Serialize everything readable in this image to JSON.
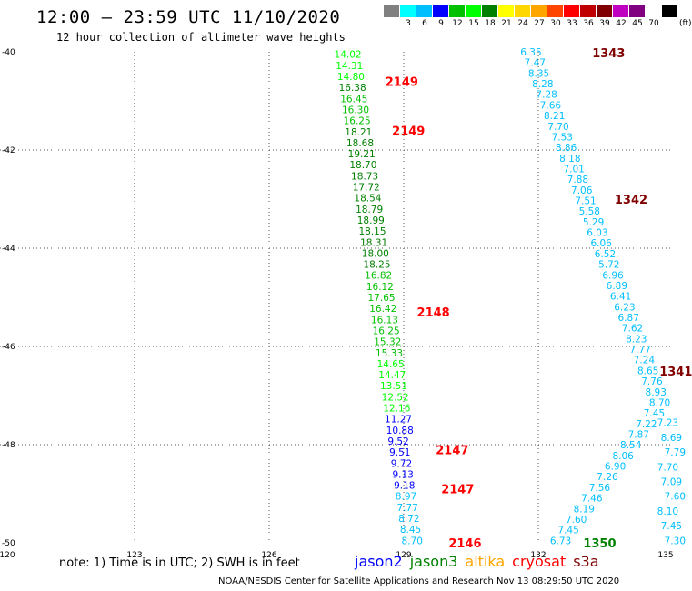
{
  "header": {
    "title": "12:00 – 23:59 UTC 11/10/2020",
    "subtitle": "12 hour collection of altimeter wave heights"
  },
  "colorbar": {
    "colors": [
      "#808080",
      "#00ffff",
      "#00bfff",
      "#0000ff",
      "#00c000",
      "#00ff00",
      "#008000",
      "#ffff00",
      "#ffd700",
      "#ffa500",
      "#ff4500",
      "#ff0000",
      "#c00000",
      "#800000",
      "#c000c0",
      "#800080",
      "#ffffff",
      "#000000"
    ],
    "labels": [
      "",
      "3",
      "6",
      "9",
      "12",
      "15",
      "18",
      "21",
      "24",
      "27",
      "30",
      "33",
      "36",
      "39",
      "42",
      "45",
      "70",
      ""
    ],
    "unit": "(ft)"
  },
  "map": {
    "lon_range": [
      120,
      135
    ],
    "lat_range": [
      -50,
      -40
    ],
    "lon_ticks": [
      "120",
      "123",
      "126",
      "129",
      "132",
      "135"
    ],
    "lat_ticks": [
      "-40",
      "-42",
      "-44",
      "-46",
      "-48",
      "-50"
    ],
    "track1": [
      {
        "v": "14.02",
        "c": "#00ff00"
      },
      {
        "v": "14.31",
        "c": "#00ff00"
      },
      {
        "v": "14.80",
        "c": "#00ff00"
      },
      {
        "v": "16.38",
        "c": "#008000"
      },
      {
        "v": "16.45",
        "c": "#00c000"
      },
      {
        "v": "16.30",
        "c": "#00c000"
      },
      {
        "v": "16.25",
        "c": "#00c000"
      },
      {
        "v": "18.21",
        "c": "#008000"
      },
      {
        "v": "18.68",
        "c": "#008000"
      },
      {
        "v": "19.21",
        "c": "#008000"
      },
      {
        "v": "18.70",
        "c": "#008000"
      },
      {
        "v": "18.73",
        "c": "#008000"
      },
      {
        "v": "17.72",
        "c": "#008000"
      },
      {
        "v": "18.54",
        "c": "#008000"
      },
      {
        "v": "18.79",
        "c": "#008000"
      },
      {
        "v": "18.99",
        "c": "#008000"
      },
      {
        "v": "18.15",
        "c": "#008000"
      },
      {
        "v": "18.31",
        "c": "#008000"
      },
      {
        "v": "18.00",
        "c": "#008000"
      },
      {
        "v": "18.25",
        "c": "#008000"
      },
      {
        "v": "16.82",
        "c": "#00c000"
      },
      {
        "v": "16.12",
        "c": "#00c000"
      },
      {
        "v": "17.65",
        "c": "#00c000"
      },
      {
        "v": "16.42",
        "c": "#00c000"
      },
      {
        "v": "16.13",
        "c": "#00c000"
      },
      {
        "v": "16.25",
        "c": "#00c000"
      },
      {
        "v": "15.32",
        "c": "#00c000"
      },
      {
        "v": "15.33",
        "c": "#00c000"
      },
      {
        "v": "14.65",
        "c": "#00ff00"
      },
      {
        "v": "14.47",
        "c": "#00ff00"
      },
      {
        "v": "13.51",
        "c": "#00ff00"
      },
      {
        "v": "12.52",
        "c": "#00ff00"
      },
      {
        "v": "12.16",
        "c": "#00ff00"
      },
      {
        "v": "11.27",
        "c": "#0000ff"
      },
      {
        "v": "10.88",
        "c": "#0000ff"
      },
      {
        "v": "9.52",
        "c": "#0000ff"
      },
      {
        "v": "9.51",
        "c": "#0000ff"
      },
      {
        "v": "9.72",
        "c": "#0000ff"
      },
      {
        "v": "9.13",
        "c": "#0000ff"
      },
      {
        "v": "9.18",
        "c": "#0000ff"
      },
      {
        "v": "8.97",
        "c": "#00bfff"
      },
      {
        "v": "7.77",
        "c": "#00bfff"
      },
      {
        "v": "8.72",
        "c": "#00bfff"
      },
      {
        "v": "8.45",
        "c": "#00bfff"
      },
      {
        "v": "8.70",
        "c": "#00bfff"
      }
    ],
    "track1_passes": [
      {
        "label": "2149",
        "lat": -40.6
      },
      {
        "label": "2149",
        "lat": -41.6
      },
      {
        "label": "2148",
        "lat": -45.3
      },
      {
        "label": "2147",
        "lat": -48.1
      },
      {
        "label": "2147",
        "lat": -48.9
      },
      {
        "label": "2146",
        "lat": -50.0
      }
    ],
    "track2": [
      "6.35",
      "7.47",
      "8.35",
      "8.28",
      "7.28",
      "7.66",
      "8.21",
      "7.70",
      "7.53",
      "8.86",
      "8.18",
      "7.01",
      "7.88",
      "7.06",
      "7.51",
      "5.58",
      "5.29",
      "6.03",
      "6.06",
      "6.52",
      "5.72",
      "6.96",
      "6.89",
      "6.41",
      "6.23",
      "6.87",
      "7.62",
      "8.23",
      "7.77",
      "7.24",
      "8.65",
      "7.76",
      "8.93",
      "8.70",
      "7.45",
      "7.22",
      "7.87",
      "8.54",
      "8.06",
      "6.90",
      "7.26",
      "7.56",
      "7.46",
      "8.19",
      "7.60",
      "7.45",
      "6.73"
    ],
    "track2_passes": [
      {
        "label": "1343",
        "lat": -40.0,
        "color": "#800000"
      },
      {
        "label": "1342",
        "lat": -43.0,
        "color": "#800000"
      },
      {
        "label": "1341",
        "lat": -46.5,
        "color": "#800000"
      },
      {
        "label": "1350",
        "lat": -50.0,
        "color": "#008000"
      }
    ],
    "track3": [
      "7.23",
      "8.69",
      "7.79",
      "7.70",
      "7.09",
      "7.60",
      "8.10",
      "7.45",
      "7.30"
    ]
  },
  "note": "note:  1) Time is in UTC;  2) SWH is in feet",
  "legend": [
    {
      "name": "jason2",
      "color": "#0000ff"
    },
    {
      "name": "jason3",
      "color": "#008000"
    },
    {
      "name": "altika",
      "color": "#ffa500"
    },
    {
      "name": "cryosat",
      "color": "#ff0000"
    },
    {
      "name": "s3a",
      "color": "#800000"
    }
  ],
  "footer": "NOAA/NESDIS Center for Satellite Applications and Research     Nov 13 08:29:50 UTC 2020"
}
